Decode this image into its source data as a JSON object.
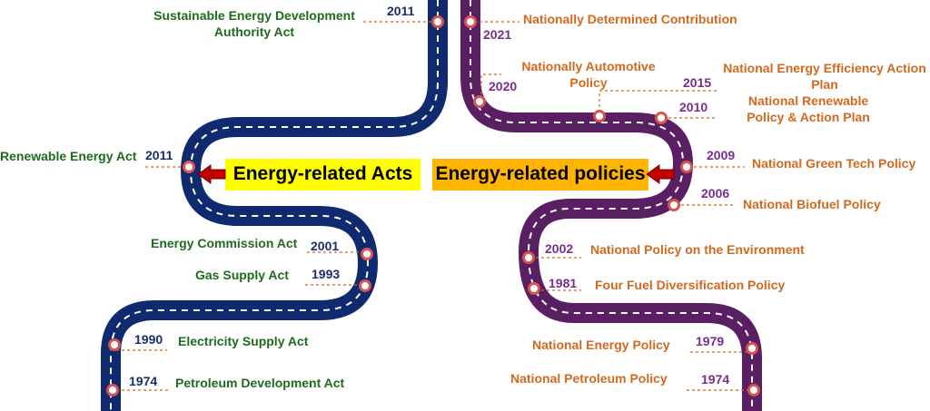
{
  "colors": {
    "acts_road": "#0f2a6e",
    "policies_road": "#5a1f63",
    "act_text": "#1e6b1e",
    "policy_text": "#d2691e",
    "act_year": "#1a2e6b",
    "policy_year": "#7a2c8f",
    "acts_box": "#ffff00",
    "policies_box": "#ffb400",
    "arrow": "#c00000",
    "pin": "#d9534f"
  },
  "acts_box_label": "Energy-related Acts",
  "policies_box_label": "Energy-related policies",
  "acts": [
    {
      "name": "Sustainable Energy Development\nAuthority Act",
      "year": "2011"
    },
    {
      "name": "Renewable Energy Act",
      "year": "2011"
    },
    {
      "name": "Energy Commission Act",
      "year": "2001"
    },
    {
      "name": "Gas Supply Act",
      "year": "1993"
    },
    {
      "name": "Electricity Supply Act",
      "year": "1990"
    },
    {
      "name": "Petroleum Development Act",
      "year": "1974"
    }
  ],
  "policies": [
    {
      "name": "Nationally Determined Contribution",
      "year": "2021"
    },
    {
      "name": "Nationally Automotive\nPolicy",
      "year": "2020"
    },
    {
      "name": "National Energy Efficiency Action\nPlan",
      "year": "2015"
    },
    {
      "name": "National Renewable\nPolicy & Action Plan",
      "year": "2010"
    },
    {
      "name": "National Green Tech Policy",
      "year": "2009"
    },
    {
      "name": "National Biofuel Policy",
      "year": "2006"
    },
    {
      "name": "National Policy on the Environment",
      "year": "2002"
    },
    {
      "name": "Four Fuel Diversification Policy",
      "year": "1981"
    },
    {
      "name": "National Energy Policy",
      "year": "1979"
    },
    {
      "name": "National Petroleum Policy",
      "year": "1974"
    }
  ]
}
